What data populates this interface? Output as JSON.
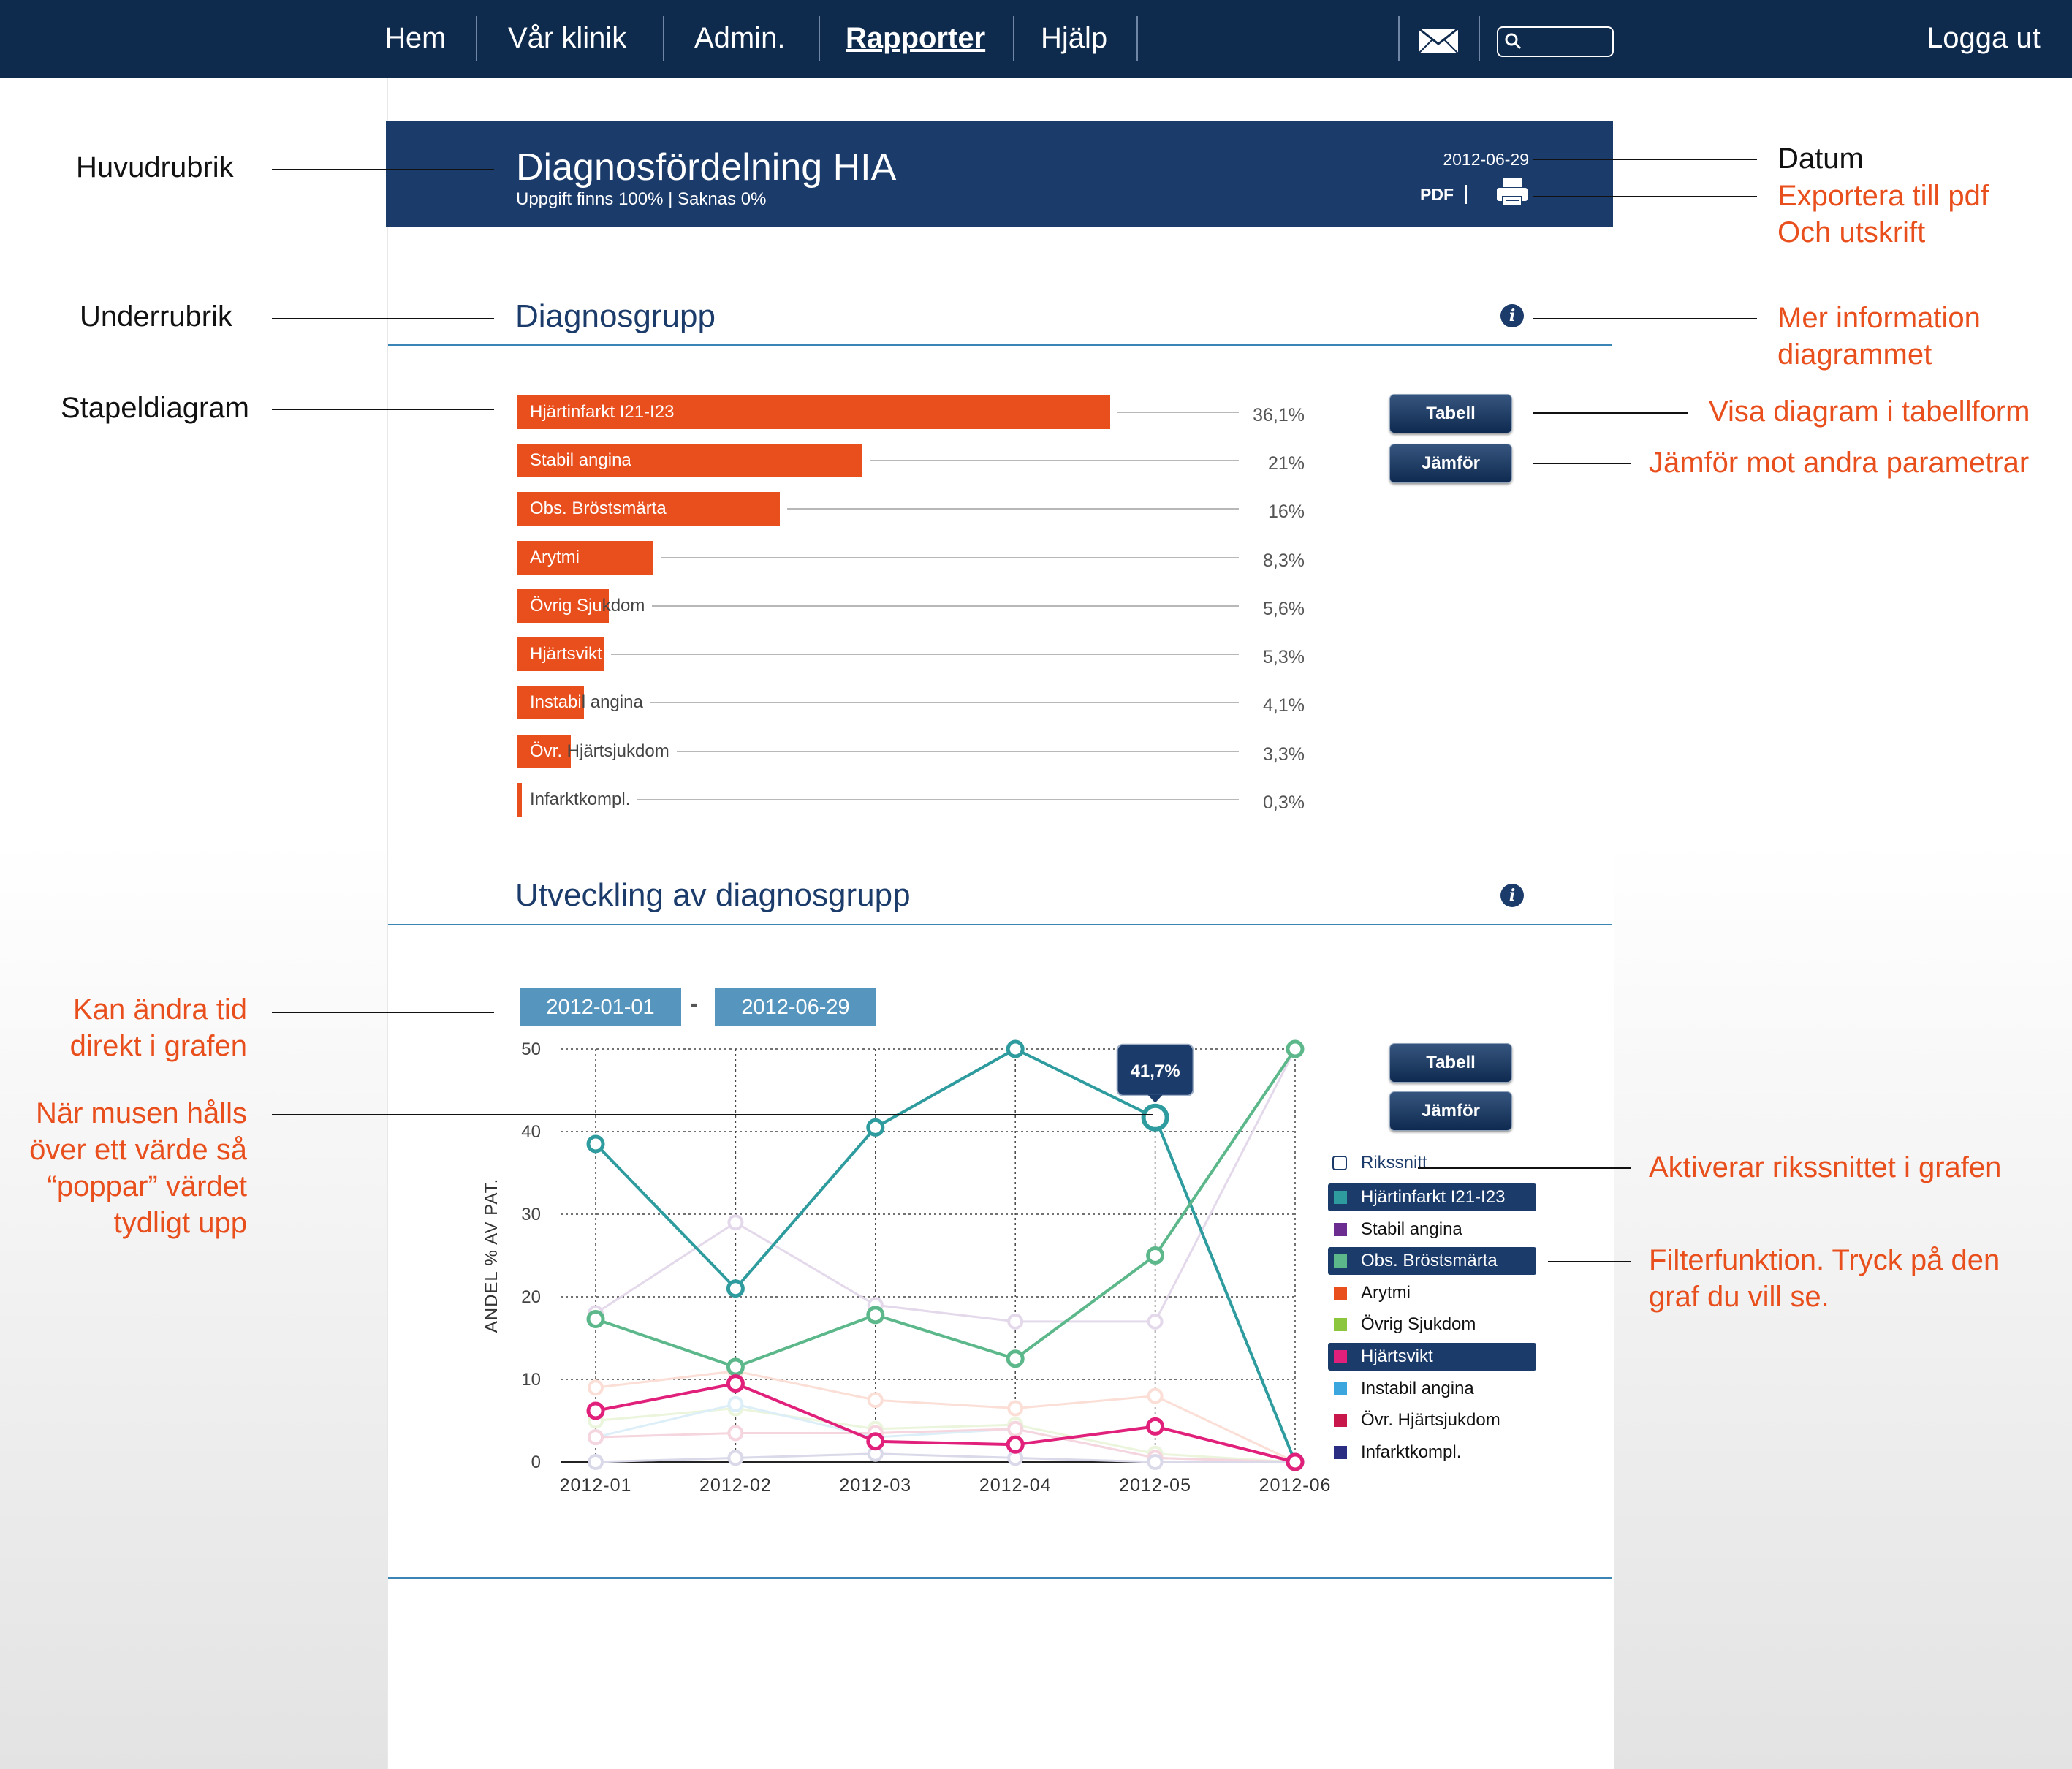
{
  "nav": {
    "items": [
      "Hem",
      "Vår klinik",
      "Admin.",
      "Rapporter",
      "Hjälp"
    ],
    "active": "Rapporter",
    "logout": "Logga ut",
    "mail_icon": "mail-icon",
    "search_icon": "search-icon"
  },
  "header": {
    "title": "Diagnosfördelning HIA",
    "subtitle": "Uppgift finns 100% | Saknas 0%",
    "date": "2012-06-29",
    "pdf": "PDF",
    "print_icon": "printer-icon"
  },
  "section1": {
    "title": "Diagnosgrupp"
  },
  "section2": {
    "title": "Utveckling av diagnosgrupp"
  },
  "buttons": {
    "tabell": "Tabell",
    "jamfor": "Jämför"
  },
  "date_range": {
    "from": "2012-01-01",
    "separator": "-",
    "to": "2012-06-29"
  },
  "annotations": {
    "left": {
      "huvudrubrik": "Huvudrubrik",
      "underrubrik": "Underrubrik",
      "stapeldiagram": "Stapeldiagram",
      "kan_andra": [
        "Kan ändra tid",
        "direkt i grafen"
      ],
      "musen": [
        "När musen hålls",
        "över ett värde så",
        "“poppar” värdet",
        "tydligt upp"
      ]
    },
    "right": {
      "datum": "Datum",
      "exportera": [
        "Exportera till pdf",
        "Och utskrift"
      ],
      "mer_info": [
        "Mer information",
        "diagrammet"
      ],
      "visa_tabell": "Visa diagram i tabellform",
      "jamfor": "Jämför mot andra parametrar",
      "rikssnitt": "Aktiverar rikssnittet i grafen",
      "filter": [
        "Filterfunktion. Tryck på den",
        "graf du vill se."
      ]
    }
  },
  "chart_data": [
    {
      "type": "bar",
      "orientation": "horizontal",
      "categories": [
        "Hjärtinfarkt I21-I23",
        "Stabil angina",
        "Obs. Bröstsmärta",
        "Arytmi",
        "Övrig Sjukdom",
        "Hjärtsvikt",
        "Instabil angina",
        "Övr. Hjärtsjukdom",
        "Infarktkompl."
      ],
      "values": [
        36.1,
        21,
        16,
        8.3,
        5.6,
        5.3,
        4.1,
        3.3,
        0.3
      ],
      "value_labels": [
        "36,1%",
        "21%",
        "16%",
        "8,3%",
        "5,6%",
        "5,3%",
        "4,1%",
        "3,3%",
        "0,3%"
      ],
      "color": "#e84f1c"
    },
    {
      "type": "line",
      "x": [
        "2012-01",
        "2012-02",
        "2012-03",
        "2012-04",
        "2012-05",
        "2012-06"
      ],
      "ylabel": "ANDEL % AV PAT.",
      "ylim": [
        0,
        50
      ],
      "yticks": [
        0,
        10,
        20,
        30,
        40,
        50
      ],
      "grid": true,
      "legend_position": "right",
      "tooltip": {
        "x": "2012-05",
        "series": "Hjärtinfarkt I21-I23",
        "label": "41,7%"
      },
      "rikssnitt": {
        "label": "Rikssnitt",
        "checked": false
      },
      "series": [
        {
          "name": "Hjärtinfarkt I21-I23",
          "color": "#2e9c9f",
          "active": true,
          "values": [
            38.5,
            21,
            40.5,
            50,
            41.7,
            0
          ]
        },
        {
          "name": "Stabil angina",
          "color": "#6b2d8f",
          "active": false,
          "values": [
            18,
            29,
            19,
            17,
            17,
            50
          ]
        },
        {
          "name": "Obs. Bröstsmärta",
          "color": "#5cb88a",
          "active": true,
          "values": [
            17.3,
            11.5,
            17.8,
            12.5,
            25,
            50
          ]
        },
        {
          "name": "Arytmi",
          "color": "#e84f1c",
          "active": false,
          "values": [
            9,
            11,
            7.5,
            6.5,
            8,
            0
          ]
        },
        {
          "name": "Övrig Sjukdom",
          "color": "#8cc63f",
          "active": false,
          "values": [
            5,
            6.5,
            4,
            4.5,
            1,
            0
          ]
        },
        {
          "name": "Hjärtsvikt",
          "color": "#e0207a",
          "active": true,
          "values": [
            6.2,
            9.5,
            2.5,
            2.1,
            4.3,
            0
          ]
        },
        {
          "name": "Instabil angina",
          "color": "#3aa6dd",
          "active": false,
          "values": [
            3,
            7,
            3,
            4,
            0.5,
            0
          ]
        },
        {
          "name": "Övr. Hjärtsjukdom",
          "color": "#c8174a",
          "active": false,
          "values": [
            3,
            3.5,
            3.5,
            4,
            0.5,
            0
          ]
        },
        {
          "name": "Infarktkompl.",
          "color": "#2b2d83",
          "active": false,
          "values": [
            0,
            0.5,
            1,
            0.5,
            0,
            0
          ]
        }
      ]
    }
  ]
}
